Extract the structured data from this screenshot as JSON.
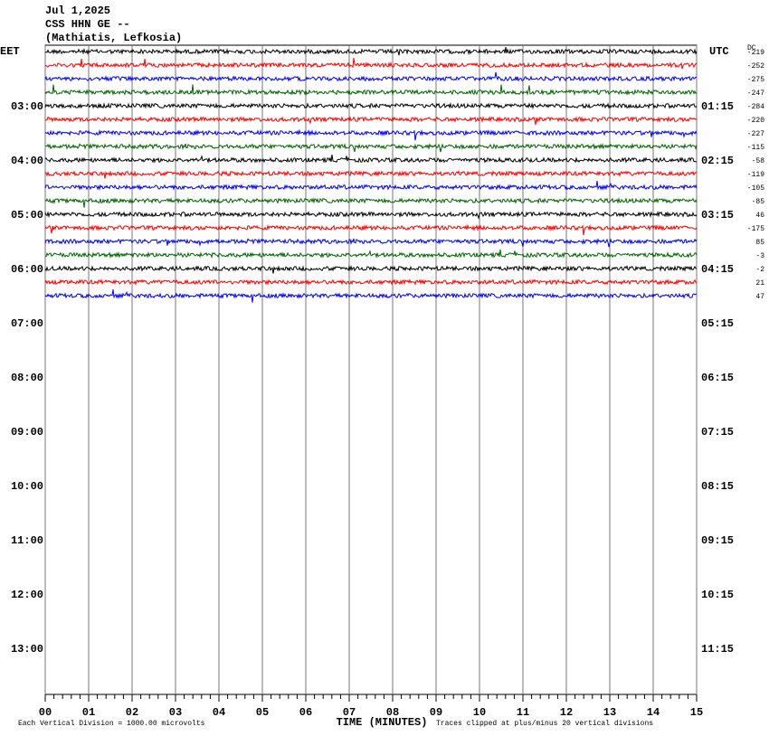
{
  "chart_data": {
    "type": "helicorder",
    "title_lines": [
      "Jul 1,2025",
      "CSS HHN GE --",
      "(Mathiatis, Lefkosia)"
    ],
    "left_header": "EET",
    "right_header": "UTC",
    "dc_header": "DC",
    "left_labels": [
      "03:00",
      "04:00",
      "05:00",
      "06:00",
      "07:00",
      "08:00",
      "09:00",
      "10:00",
      "11:00",
      "12:00",
      "13:00"
    ],
    "right_labels": [
      "01:15",
      "02:15",
      "03:15",
      "04:15",
      "05:15",
      "06:15",
      "07:15",
      "08:15",
      "09:15",
      "10:15",
      "11:15"
    ],
    "dc_offsets": [
      -219,
      -252,
      -275,
      -247,
      -284,
      -220,
      -227,
      -115,
      -58,
      -119,
      -105,
      -85,
      46,
      -175,
      85,
      -3,
      -2,
      21,
      47
    ],
    "trace_colors": [
      "#000000",
      "#ff0000",
      "#0000ff",
      "#006400"
    ],
    "xlim": [
      0,
      15
    ],
    "xticks": [
      {
        "value": 0,
        "label": "00"
      },
      {
        "value": 1,
        "label": "01"
      },
      {
        "value": 2,
        "label": "02"
      },
      {
        "value": 3,
        "label": "03"
      },
      {
        "value": 4,
        "label": "04"
      },
      {
        "value": 5,
        "label": "05"
      },
      {
        "value": 6,
        "label": "06"
      },
      {
        "value": 7,
        "label": "07"
      },
      {
        "value": 8,
        "label": "08"
      },
      {
        "value": 9,
        "label": "09"
      },
      {
        "value": 10,
        "label": "10"
      },
      {
        "value": 11,
        "label": "11"
      },
      {
        "value": 12,
        "label": "12"
      },
      {
        "value": 13,
        "label": "13"
      },
      {
        "value": 14,
        "label": "14"
      },
      {
        "value": 15,
        "label": "15"
      }
    ],
    "x_label": "TIME (MINUTES)",
    "footnote_left": "Each Vertical Division = 1000.00 microvolts",
    "footnote_right": "Traces clipped at plus/minus 20 vertical divisions"
  }
}
